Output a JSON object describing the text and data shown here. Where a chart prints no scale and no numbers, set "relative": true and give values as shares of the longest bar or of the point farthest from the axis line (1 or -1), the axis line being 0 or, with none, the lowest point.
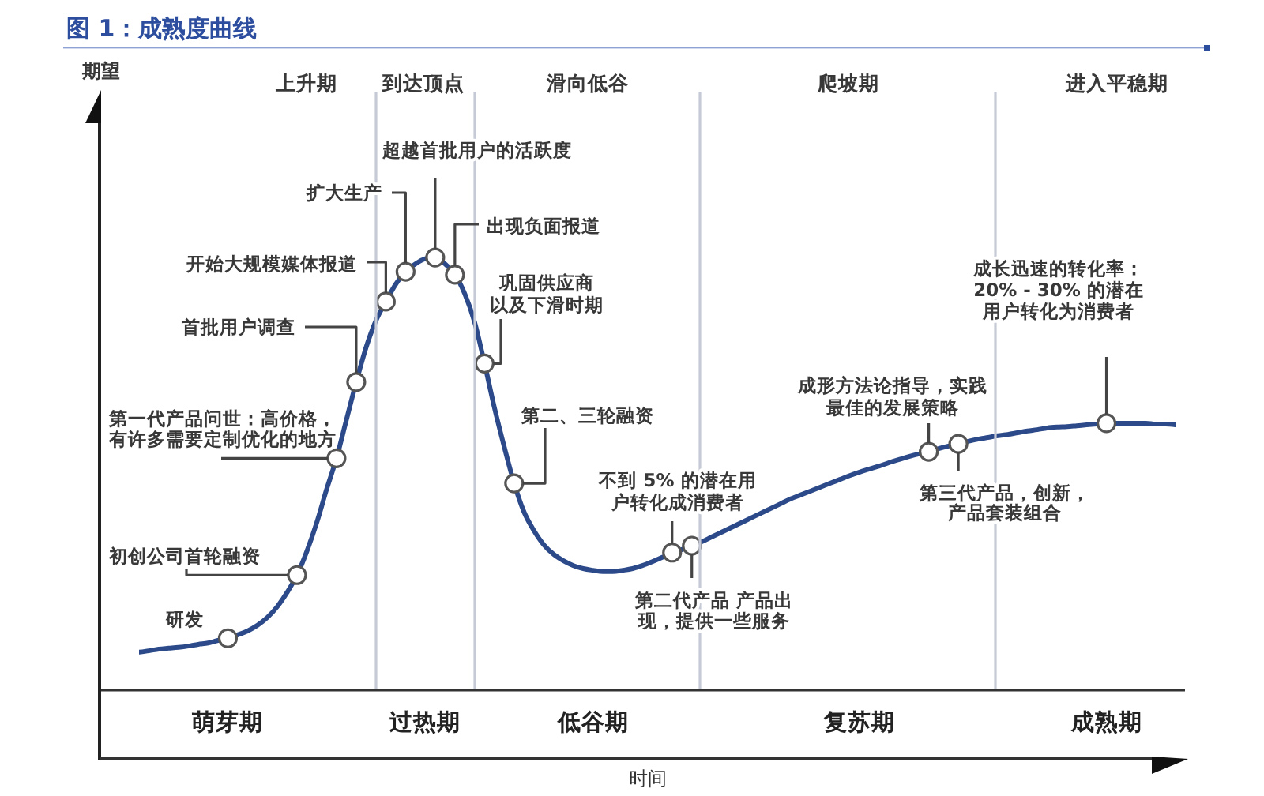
{
  "chart_data": {
    "type": "line",
    "title": "图 1：成熟度曲线",
    "xlabel": "时间",
    "relative": true,
    "categories": [
      null,
      null,
      null,
      null,
      null,
      null,
      null,
      null,
      null,
      "萌芽期",
      null,
      null,
      null,
      null,
      null,
      null,
      null,
      null,
      null,
      null,
      null,
      null,
      null,
      null,
      null,
      null,
      null,
      null,
      null,
      "过热期",
      null,
      null,
      null,
      null,
      null,
      null,
      null,
      null,
      null,
      null,
      null,
      null,
      null,
      null,
      null,
      null,
      "低谷期",
      null,
      null,
      null,
      null,
      null,
      null,
      null,
      null,
      null,
      null,
      null,
      null,
      null,
      null,
      null,
      null,
      null,
      null,
      null,
      null,
      null,
      null,
      null,
      null,
      null,
      null,
      "复苏期",
      null,
      null,
      null,
      null,
      null,
      null,
      null,
      null,
      null,
      null,
      null,
      null,
      null,
      null,
      null,
      null,
      null,
      null,
      null,
      null,
      null,
      null,
      null,
      null,
      "成熟期",
      null,
      null,
      null,
      null,
      null,
      null,
      null
    ],
    "series": [
      {
        "color": "#2c4a8a",
        "values": [
          0.088,
          0.091,
          0.095,
          0.097,
          0.099,
          0.102,
          0.106,
          0.109,
          0.115,
          0.12,
          0.128,
          0.137,
          0.15,
          0.168,
          0.193,
          0.226,
          0.266,
          0.321,
          0.387,
          0.464,
          0.536,
          0.624,
          0.712,
          0.792,
          0.854,
          0.898,
          0.938,
          0.967,
          0.985,
          0.997,
          1.0,
          0.985,
          0.96,
          0.916,
          0.85,
          0.755,
          0.653,
          0.562,
          0.478,
          0.412,
          0.369,
          0.336,
          0.314,
          0.299,
          0.288,
          0.281,
          0.277,
          0.274,
          0.274,
          0.277,
          0.281,
          0.288,
          0.297,
          0.307,
          0.318,
          0.325,
          0.334,
          0.343,
          0.354,
          0.365,
          0.376,
          0.387,
          0.398,
          0.409,
          0.42,
          0.431,
          0.442,
          0.451,
          0.46,
          0.469,
          0.478,
          0.487,
          0.496,
          0.504,
          0.511,
          0.518,
          0.526,
          0.533,
          0.54,
          0.546,
          0.551,
          0.558,
          0.564,
          0.569,
          0.575,
          0.58,
          0.584,
          0.588,
          0.591,
          0.595,
          0.599,
          0.602,
          0.606,
          0.608,
          0.609,
          0.611,
          0.613,
          0.615,
          0.617,
          0.617,
          0.617,
          0.617,
          0.617,
          0.615,
          0.615,
          0.613
        ]
      },
      {
        "type": "scatter",
        "color": "#555555",
        "marker": "circle",
        "values": [
          null,
          null,
          null,
          null,
          null,
          null,
          null,
          null,
          null,
          0.12,
          null,
          null,
          null,
          null,
          null,
          null,
          0.266,
          null,
          null,
          null,
          0.536,
          null,
          0.712,
          null,
          null,
          0.898,
          null,
          0.967,
          null,
          null,
          1.0,
          null,
          0.96,
          null,
          null,
          0.755,
          null,
          null,
          0.478,
          null,
          null,
          null,
          null,
          null,
          null,
          null,
          null,
          null,
          null,
          null,
          null,
          null,
          null,
          null,
          0.318,
          null,
          0.334,
          null,
          null,
          null,
          null,
          null,
          null,
          null,
          null,
          null,
          null,
          null,
          null,
          null,
          null,
          null,
          null,
          null,
          null,
          null,
          null,
          null,
          null,
          null,
          0.551,
          null,
          null,
          0.569,
          null,
          null,
          null,
          null,
          null,
          null,
          null,
          null,
          null,
          null,
          null,
          null,
          null,
          null,
          0.617,
          null,
          null,
          null,
          null,
          null,
          null,
          null
        ]
      }
    ],
    "annotations": [
      "期望",
      "上升期",
      "到达顶点",
      "滑向低谷",
      "爬坡期",
      "进入平稳期",
      "研发",
      "初创公司首轮融资",
      "第一代产品问世：高价格，有许多需要定制优化的地方",
      "首批用户调查",
      "开始大规模媒体报道",
      "扩大生产",
      "超越首批用户的活跃度",
      "出现负面报道",
      "巩固供应商以及下滑时期",
      "第二、三轮融资",
      "不到 5% 的潜在用户转化成消费者",
      "第二代产品 产品出现，提供一些服务",
      "成形方法论指导，实践最佳的发展策略",
      "第三代产品，创新，产品套装组合",
      "成长迅速的转化率：20% - 30% 的潜在用户转化为消费者"
    ]
  }
}
